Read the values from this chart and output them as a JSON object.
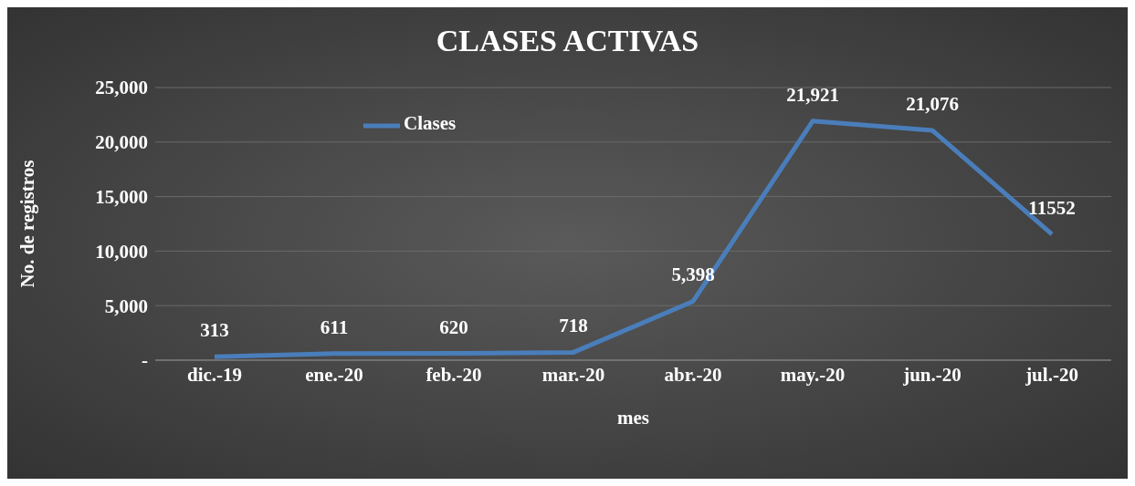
{
  "chart_data": {
    "type": "line",
    "title": "CLASES ACTIVAS",
    "xlabel": "mes",
    "ylabel": "No. de registros",
    "categories": [
      "dic.-19",
      "ene.-20",
      "feb.-20",
      "mar.-20",
      "abr.-20",
      "may.-20",
      "jun.-20",
      "jul.-20"
    ],
    "series": [
      {
        "name": "Clases",
        "color": "#4a7ebb",
        "values": [
          313,
          611,
          620,
          718,
          5398,
          21921,
          21076,
          11552
        ],
        "value_labels": [
          "313",
          "611",
          "620",
          "718",
          "5,398",
          "21,921",
          "21,076",
          "11552"
        ]
      }
    ],
    "ylim": [
      0,
      25000
    ],
    "yticks": [
      {
        "value": 0,
        "label": "-"
      },
      {
        "value": 5000,
        "label": "5,000"
      },
      {
        "value": 10000,
        "label": "10,000"
      },
      {
        "value": 15000,
        "label": "15,000"
      },
      {
        "value": 20000,
        "label": "20,000"
      },
      {
        "value": 25000,
        "label": "25,000"
      }
    ],
    "grid": "y",
    "legend": "top left",
    "marker": "none",
    "line_style": "solid"
  }
}
